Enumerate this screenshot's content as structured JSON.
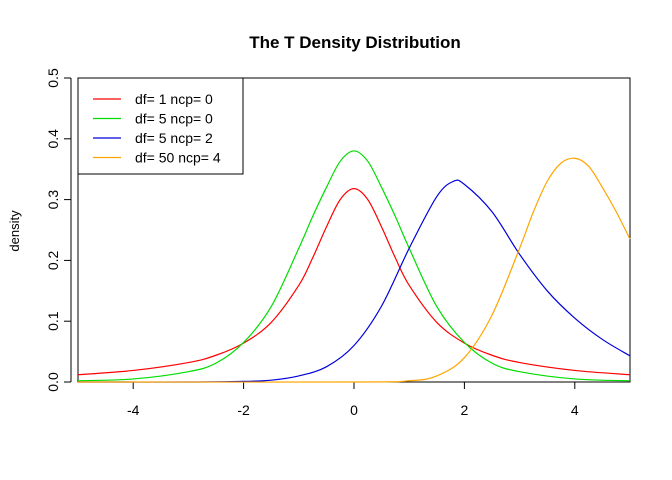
{
  "chart_data": {
    "type": "line",
    "title": "The T Density Distribution",
    "xlabel": "",
    "ylabel": "density",
    "xlim": [
      -5,
      5
    ],
    "ylim": [
      0,
      0.5
    ],
    "xticks": [
      -4,
      -2,
      0,
      2,
      4
    ],
    "xtick_labels": [
      "-4",
      "-2",
      "0",
      "2",
      "4"
    ],
    "yticks": [
      0,
      0.1,
      0.2,
      0.3,
      0.4,
      0.5
    ],
    "ytick_labels": [
      "0.0",
      "0.1",
      "0.2",
      "0.3",
      "0.4",
      "0.5"
    ],
    "grid": false,
    "legend_position": "top-left",
    "series": [
      {
        "name": "df= 1  ncp= 0",
        "color": "#ff0000",
        "x": [
          -5,
          -4,
          -3,
          -2.5,
          -2,
          -1.5,
          -1,
          -0.75,
          -0.5,
          -0.25,
          0,
          0.25,
          0.5,
          0.75,
          1,
          1.5,
          2,
          2.5,
          3,
          4,
          5
        ],
        "y": [
          0.012,
          0.019,
          0.032,
          0.044,
          0.064,
          0.098,
          0.159,
          0.204,
          0.255,
          0.3,
          0.318,
          0.3,
          0.255,
          0.204,
          0.159,
          0.098,
          0.064,
          0.044,
          0.032,
          0.019,
          0.012
        ]
      },
      {
        "name": "df= 5  ncp= 0",
        "color": "#00dd00",
        "x": [
          -5,
          -4,
          -3,
          -2.5,
          -2,
          -1.5,
          -1,
          -0.75,
          -0.5,
          -0.25,
          0,
          0.25,
          0.5,
          0.75,
          1,
          1.5,
          2,
          2.5,
          3,
          4,
          5
        ],
        "y": [
          0.002,
          0.005,
          0.017,
          0.031,
          0.065,
          0.124,
          0.22,
          0.272,
          0.32,
          0.363,
          0.38,
          0.363,
          0.32,
          0.272,
          0.22,
          0.124,
          0.065,
          0.031,
          0.017,
          0.005,
          0.002
        ]
      },
      {
        "name": "df= 5  ncp= 2",
        "color": "#0000dd",
        "x": [
          -5,
          -3,
          -2,
          -1.5,
          -1,
          -0.5,
          0,
          0.5,
          1,
          1.5,
          1.8,
          2,
          2.5,
          3,
          3.5,
          4,
          4.5,
          5
        ],
        "y": [
          0.0,
          0.0,
          0.001,
          0.003,
          0.01,
          0.025,
          0.06,
          0.125,
          0.22,
          0.305,
          0.33,
          0.325,
          0.28,
          0.21,
          0.15,
          0.105,
          0.07,
          0.043
        ]
      },
      {
        "name": "df= 50  ncp= 4",
        "color": "#ffa500",
        "x": [
          -5,
          0,
          1,
          1.5,
          2,
          2.5,
          3,
          3.25,
          3.5,
          3.75,
          4,
          4.25,
          4.5,
          4.75,
          5
        ],
        "y": [
          0.0,
          0.0,
          0.002,
          0.01,
          0.04,
          0.11,
          0.22,
          0.28,
          0.33,
          0.36,
          0.368,
          0.355,
          0.32,
          0.28,
          0.235
        ]
      }
    ]
  }
}
